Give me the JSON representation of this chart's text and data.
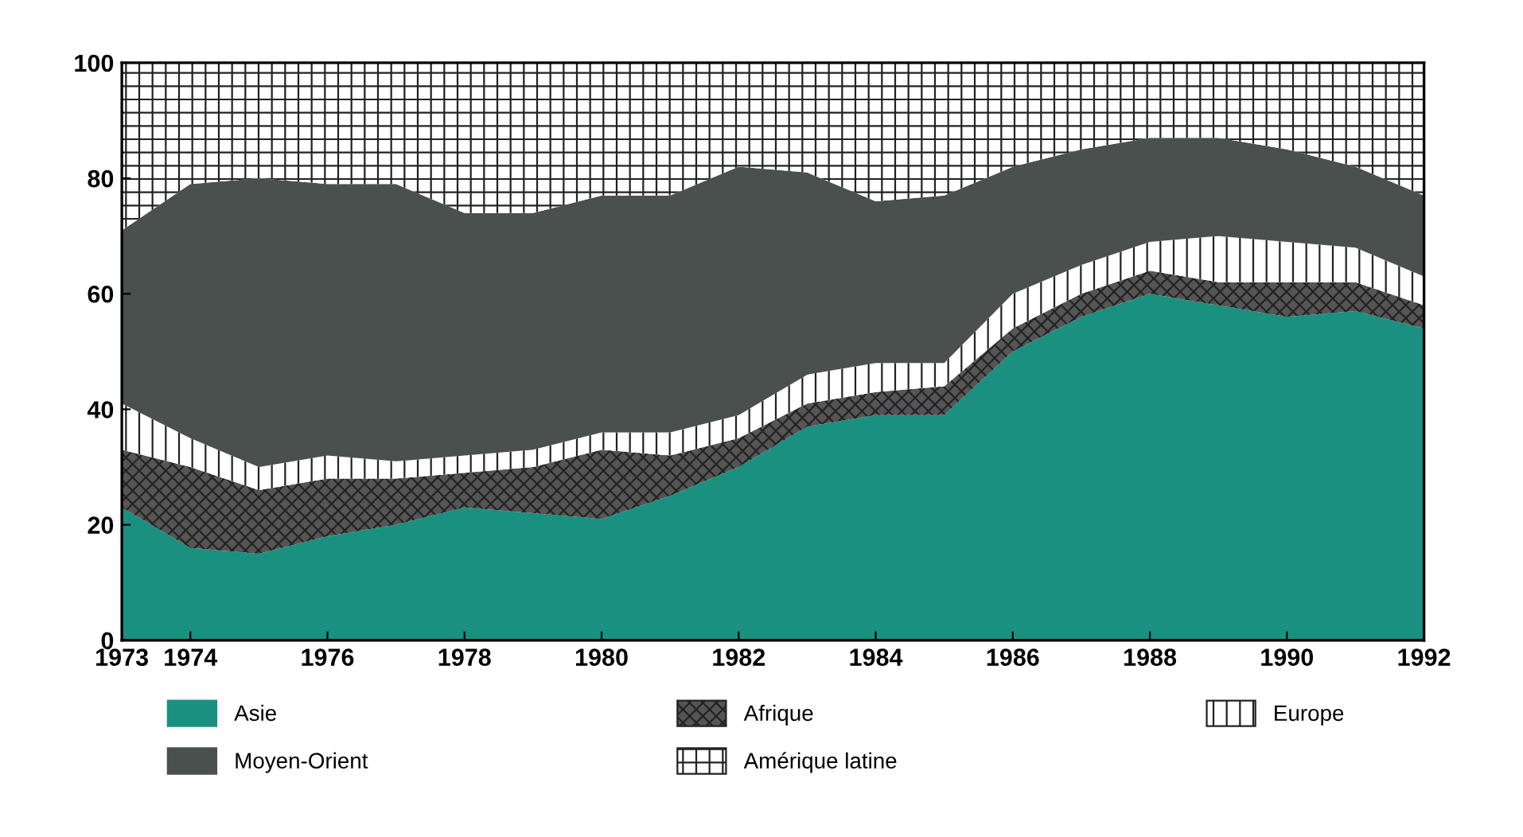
{
  "chart_data": {
    "type": "area",
    "stacked": true,
    "x": [
      1973,
      1974,
      1975,
      1976,
      1977,
      1978,
      1979,
      1980,
      1981,
      1982,
      1983,
      1984,
      1985,
      1986,
      1987,
      1988,
      1989,
      1990,
      1991,
      1992
    ],
    "series": [
      {
        "name": "Asie",
        "color": "#1a9080",
        "values": [
          23,
          16,
          15,
          18,
          20,
          23,
          22,
          21,
          25,
          30,
          37,
          39,
          39,
          50,
          56,
          60,
          58,
          56,
          57,
          54
        ]
      },
      {
        "name": "Afrique",
        "color": "#555555",
        "values": [
          10,
          14,
          11,
          10,
          8,
          6,
          8,
          12,
          7,
          5,
          4,
          4,
          5,
          4,
          4,
          4,
          4,
          6,
          5,
          4
        ]
      },
      {
        "name": "Europe",
        "color": "#ffffff",
        "values": [
          8,
          5,
          4,
          4,
          3,
          3,
          3,
          3,
          4,
          4,
          5,
          5,
          4,
          6,
          5,
          5,
          8,
          7,
          6,
          5
        ]
      },
      {
        "name": "Moyen-Orient",
        "color": "#4a504e",
        "values": [
          30,
          44,
          50,
          47,
          48,
          42,
          41,
          41,
          41,
          43,
          35,
          28,
          29,
          22,
          20,
          18,
          17,
          16,
          14,
          14
        ]
      },
      {
        "name": "Amérique latine",
        "color": "#ffffff",
        "values": [
          29,
          21,
          20,
          21,
          21,
          26,
          26,
          23,
          23,
          18,
          19,
          24,
          23,
          18,
          15,
          13,
          13,
          15,
          18,
          23
        ]
      }
    ],
    "xlim": [
      1973,
      1992
    ],
    "xticks": [
      1973,
      1974,
      1976,
      1978,
      1980,
      1982,
      1984,
      1986,
      1988,
      1990,
      1992
    ],
    "ylim": [
      0,
      100
    ],
    "yticks": [
      0,
      20,
      40,
      60,
      80,
      100
    ],
    "grid": false,
    "legend": "bottom"
  }
}
